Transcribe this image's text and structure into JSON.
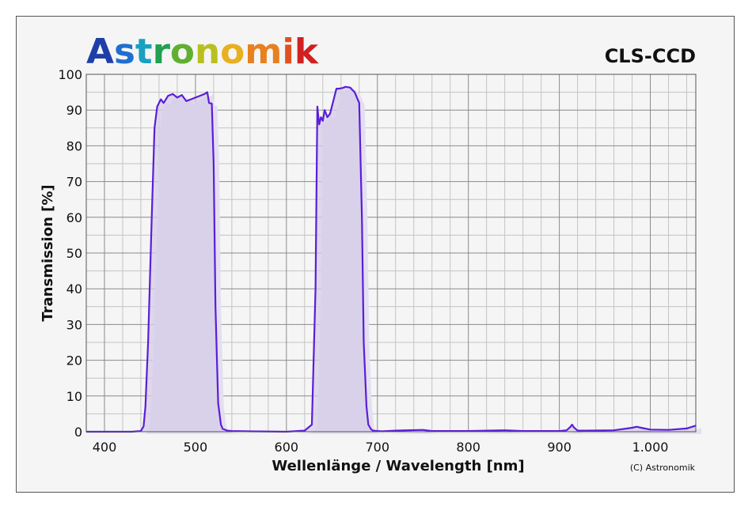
{
  "brand": {
    "logo_text": "Astronomik",
    "logo_colors": [
      "#1f3fa8",
      "#1f6fd0",
      "#1aa0c0",
      "#20a050",
      "#60b030",
      "#b8c020",
      "#e8b020",
      "#e88020",
      "#e05020",
      "#d02020"
    ]
  },
  "chart_data": {
    "type": "line",
    "title": "CLS-CCD",
    "xlabel": "Wellenlänge / Wavelength [nm]",
    "ylabel": "Transmission [%]",
    "xlim": [
      380,
      1050
    ],
    "ylim": [
      0,
      100
    ],
    "x_major_ticks": [
      400,
      500,
      600,
      700,
      800,
      900,
      1000
    ],
    "x_tick_labels": [
      "400",
      "500",
      "600",
      "700",
      "800",
      "900",
      "1.000"
    ],
    "y_major_ticks": [
      0,
      10,
      20,
      30,
      40,
      50,
      60,
      70,
      80,
      90,
      100
    ],
    "y_tick_labels": [
      "0",
      "10",
      "20",
      "30",
      "40",
      "50",
      "60",
      "70",
      "80",
      "90",
      "100"
    ],
    "grid": true,
    "copyright": "(C) Astronomik",
    "colors": {
      "line": "#5a1ed8",
      "fill": "#d6cce8",
      "grid_major": "#8a8a8a",
      "grid_minor": "#c4c4c4",
      "background": "#f5f5f5"
    },
    "series": [
      {
        "x": [
          380,
          430,
          440,
          443,
          445,
          448,
          452,
          455,
          458,
          462,
          465,
          470,
          475,
          480,
          485,
          490,
          495,
          500,
          505,
          510,
          513,
          515,
          518,
          520,
          522,
          525,
          528,
          530,
          535,
          540,
          560,
          600,
          620,
          628,
          632,
          634,
          636,
          638,
          640,
          642,
          645,
          648,
          652,
          655,
          658,
          662,
          665,
          670,
          675,
          680,
          683,
          685,
          688,
          690,
          693,
          695,
          700,
          705,
          720,
          750,
          760,
          800,
          840,
          860,
          900,
          908,
          912,
          914,
          916,
          920,
          930,
          960,
          980,
          985,
          990,
          1000,
          1020,
          1040,
          1050
        ],
        "y": [
          0,
          0,
          0.2,
          1.5,
          7,
          25,
          60,
          85,
          91,
          93,
          92,
          94,
          94.5,
          93.5,
          94.2,
          92.5,
          93,
          93.5,
          94,
          94.5,
          95,
          92,
          91.8,
          75,
          35,
          8,
          2,
          0.8,
          0.3,
          0.2,
          0.1,
          0,
          0.3,
          2,
          40,
          91,
          86,
          88,
          87,
          90,
          88,
          89,
          93,
          96,
          96,
          96.2,
          96.5,
          96.3,
          95,
          92,
          60,
          25,
          7,
          2,
          0.7,
          0.3,
          0.2,
          0.1,
          0.3,
          0.5,
          0.2,
          0.2,
          0.4,
          0.2,
          0.2,
          0.4,
          1.3,
          2,
          1.2,
          0.3,
          0.3,
          0.4,
          1.1,
          1.4,
          1.1,
          0.6,
          0.5,
          0.9,
          1.7
        ]
      }
    ]
  }
}
